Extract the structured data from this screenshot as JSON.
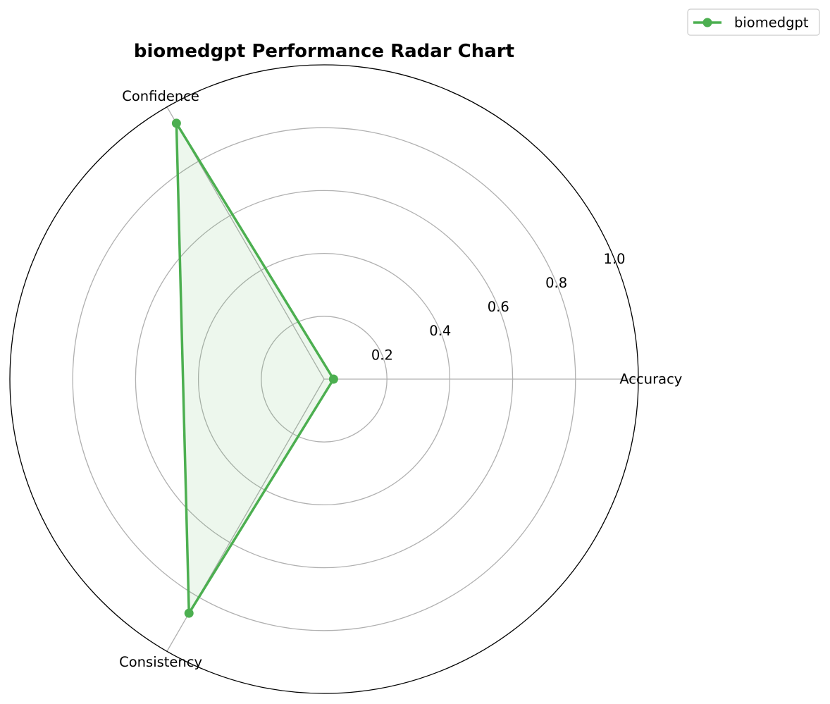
{
  "chart_data": {
    "type": "radar",
    "title": "biomedgpt Performance Radar Chart",
    "categories": [
      "Accuracy",
      "Confidence",
      "Consistency"
    ],
    "series": [
      {
        "name": "biomedgpt",
        "values": [
          0.03,
          0.94,
          0.86
        ],
        "color": "#4caf50"
      }
    ],
    "r_ticks": [
      "0.2",
      "0.4",
      "0.6",
      "0.8",
      "1.0"
    ],
    "r_tick_values": [
      0.2,
      0.4,
      0.6,
      0.8,
      1.0
    ],
    "rlim": [
      0,
      1.0
    ],
    "grid": true,
    "legend_position": "top-right"
  }
}
